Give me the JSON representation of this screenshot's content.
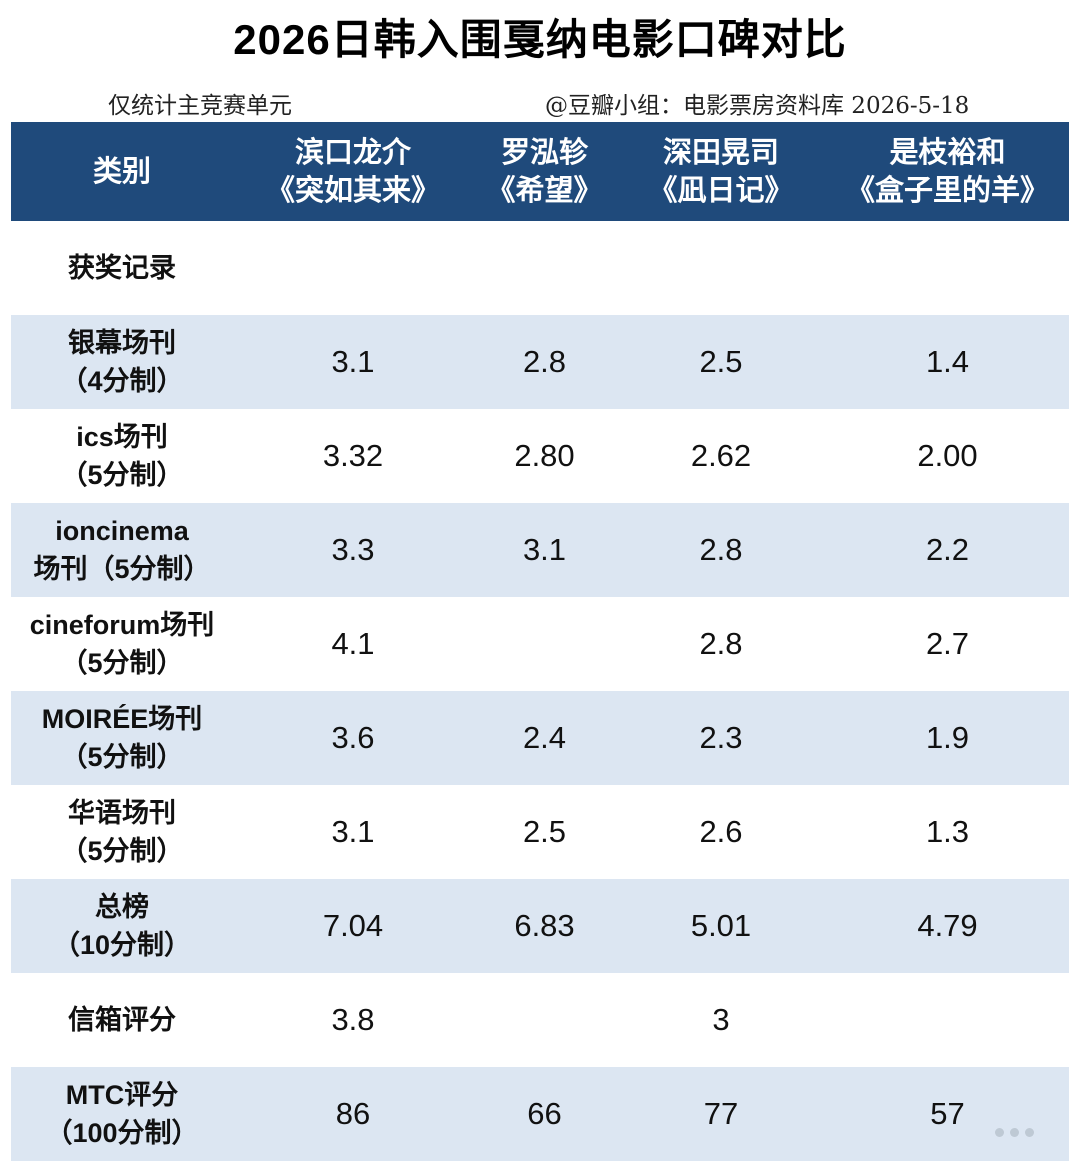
{
  "title": "2026日韩入围戛纳电影口碑对比",
  "subtitle_left": "仅统计主竞赛单元",
  "subtitle_right": "@豆瓣小组：电影票房资料库  2026-5-18",
  "table": {
    "header": {
      "category": "类别",
      "films": [
        {
          "director": "滨口龙介",
          "film": "《突如其来》"
        },
        {
          "director": "罗泓轸",
          "film": "《希望》"
        },
        {
          "director": "深田晃司",
          "film": "《凪日记》"
        },
        {
          "director": "是枝裕和",
          "film": "《盒子里的羊》"
        }
      ]
    },
    "rows": [
      {
        "label": [
          "获奖记录"
        ],
        "values": [
          "",
          "",
          "",
          ""
        ]
      },
      {
        "label": [
          "银幕场刊",
          "（4分制）"
        ],
        "values": [
          "3.1",
          "2.8",
          "2.5",
          "1.4"
        ]
      },
      {
        "label": [
          "ics场刊",
          "（5分制）"
        ],
        "values": [
          "3.32",
          "2.80",
          "2.62",
          "2.00"
        ]
      },
      {
        "label": [
          "ioncinema",
          "场刊（5分制）"
        ],
        "values": [
          "3.3",
          "3.1",
          "2.8",
          "2.2"
        ]
      },
      {
        "label": [
          "cineforum场刊",
          "（5分制）"
        ],
        "values": [
          "4.1",
          "",
          "2.8",
          "2.7"
        ]
      },
      {
        "label": [
          "MOIRÉE场刊",
          "（5分制）"
        ],
        "values": [
          "3.6",
          "2.4",
          "2.3",
          "1.9"
        ]
      },
      {
        "label": [
          "华语场刊",
          "（5分制）"
        ],
        "values": [
          "3.1",
          "2.5",
          "2.6",
          "1.3"
        ]
      },
      {
        "label": [
          "总榜",
          "（10分制）"
        ],
        "values": [
          "7.04",
          "6.83",
          "5.01",
          "4.79"
        ]
      },
      {
        "label": [
          "信箱评分"
        ],
        "values": [
          "3.8",
          "",
          "3",
          ""
        ]
      },
      {
        "label": [
          "MTC评分",
          "（100分制）"
        ],
        "values": [
          "86",
          "66",
          "77",
          "57"
        ]
      }
    ]
  }
}
